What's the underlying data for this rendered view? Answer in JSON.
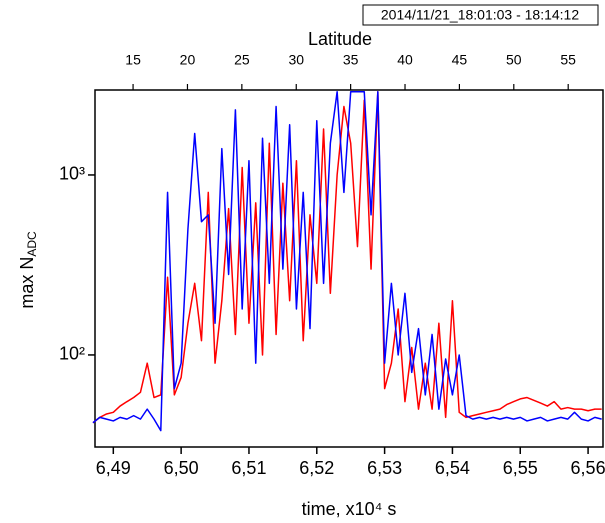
{
  "chart_data": {
    "type": "line",
    "title": "2014/11/21_18:01:03 - 18:14:12",
    "xlabel": "time, x10⁴ s",
    "ylabel": {
      "text": "max N",
      "subscript": "ADC"
    },
    "x2label": "Latitude",
    "xlim": [
      6.4873,
      6.5622
    ],
    "xticks": [
      {
        "value": 6.49,
        "label": "6,49"
      },
      {
        "value": 6.5,
        "label": "6,50"
      },
      {
        "value": 6.51,
        "label": "6,51"
      },
      {
        "value": 6.52,
        "label": "6,52"
      },
      {
        "value": 6.53,
        "label": "6,53"
      },
      {
        "value": 6.54,
        "label": "6,54"
      },
      {
        "value": 6.55,
        "label": "6,55"
      },
      {
        "value": 6.56,
        "label": "6,56"
      }
    ],
    "x2lim": [
      11.5,
      58.2
    ],
    "x2ticks": [
      15,
      20,
      25,
      30,
      35,
      40,
      45,
      50,
      55
    ],
    "ylim": [
      30.8,
      2965
    ],
    "yscale": "log",
    "yticks": [
      {
        "value": 100,
        "label": "10²"
      },
      {
        "value": 1000,
        "label": "10³"
      }
    ],
    "x": [
      6.487,
      6.488,
      6.489,
      6.49,
      6.491,
      6.492,
      6.493,
      6.494,
      6.495,
      6.496,
      6.497,
      6.498,
      6.499,
      6.5,
      6.501,
      6.502,
      6.503,
      6.504,
      6.505,
      6.506,
      6.507,
      6.508,
      6.509,
      6.51,
      6.511,
      6.512,
      6.513,
      6.514,
      6.515,
      6.516,
      6.517,
      6.518,
      6.519,
      6.52,
      6.521,
      6.522,
      6.523,
      6.524,
      6.525,
      6.526,
      6.527,
      6.528,
      6.529,
      6.53,
      6.531,
      6.532,
      6.533,
      6.534,
      6.535,
      6.536,
      6.537,
      6.538,
      6.539,
      6.54,
      6.541,
      6.542,
      6.543,
      6.544,
      6.545,
      6.546,
      6.547,
      6.548,
      6.549,
      6.55,
      6.551,
      6.552,
      6.553,
      6.554,
      6.555,
      6.556,
      6.557,
      6.558,
      6.559,
      6.56,
      6.561,
      6.562
    ],
    "series": [
      {
        "color": "#ff0000",
        "values": [
          42,
          45,
          47,
          48,
          52,
          55,
          58,
          62,
          90,
          58,
          60,
          270,
          60,
          75,
          150,
          250,
          120,
          800,
          90,
          200,
          650,
          130,
          1100,
          150,
          700,
          100,
          1500,
          130,
          900,
          200,
          1200,
          120,
          600,
          250,
          1800,
          220,
          1000,
          2400,
          1500,
          400,
          2600,
          300,
          2900,
          65,
          90,
          180,
          55,
          110,
          50,
          90,
          50,
          150,
          45,
          200,
          48,
          45,
          46,
          47,
          48,
          49,
          50,
          53,
          55,
          57,
          58,
          56,
          54,
          52,
          55,
          50,
          51,
          50,
          50,
          49,
          50,
          50
        ]
      },
      {
        "color": "#0000ff",
        "values": [
          42,
          45,
          44,
          43,
          45,
          44,
          46,
          44,
          50,
          44,
          38,
          800,
          65,
          90,
          500,
          1700,
          550,
          600,
          150,
          1400,
          280,
          2300,
          180,
          1200,
          90,
          1600,
          250,
          2400,
          300,
          1900,
          180,
          800,
          140,
          2000,
          250,
          1500,
          2900,
          800,
          2900,
          2900,
          2900,
          600,
          2900,
          90,
          250,
          100,
          220,
          80,
          140,
          60,
          130,
          50,
          95,
          60,
          100,
          46,
          44,
          45,
          44,
          45,
          44,
          45,
          44,
          45,
          43,
          44,
          45,
          43,
          44,
          45,
          44,
          48,
          44,
          43,
          45,
          44
        ]
      }
    ]
  }
}
